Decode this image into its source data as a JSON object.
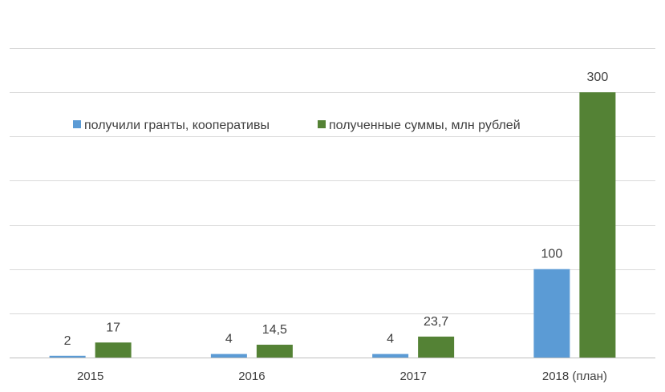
{
  "chart_data": {
    "type": "bar",
    "categories": [
      "2015",
      "2016",
      "2017",
      "2018 (план)"
    ],
    "series": [
      {
        "name": "получили гранты, кооперативы",
        "values": [
          2,
          4,
          4,
          100
        ],
        "labels": [
          "2",
          "4",
          "4",
          "100"
        ],
        "color": "#5b9bd5"
      },
      {
        "name": "полученные суммы, млн рублей",
        "values": [
          17,
          14.5,
          23.7,
          300
        ],
        "labels": [
          "17",
          "14,5",
          "23,7",
          "300"
        ],
        "color": "#548235"
      }
    ],
    "title": "",
    "xlabel": "",
    "ylabel": "",
    "ylim": [
      0,
      350
    ],
    "grid": true,
    "legend_position": "top-left"
  }
}
